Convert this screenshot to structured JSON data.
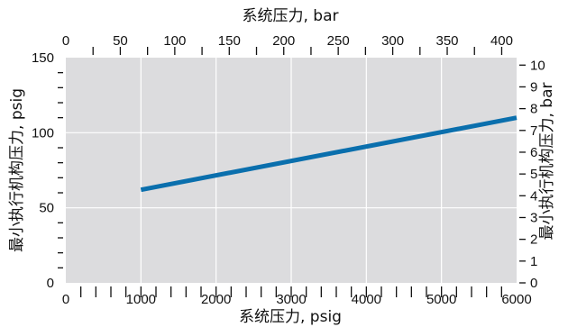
{
  "chart_data": {
    "type": "line",
    "xlabel_bottom": "系统压力, psig",
    "xlabel_top": "系统压力, bar",
    "ylabel_left": "最小执行机构压力, psig",
    "ylabel_right": "最小执行机构压力, bar",
    "xlim": [
      0,
      6000
    ],
    "ylim": [
      0,
      150
    ],
    "xticks_bottom": [
      "0",
      "1000",
      "2000",
      "3000",
      "4000",
      "5000",
      "6000"
    ],
    "xticks_top": [
      "0",
      "50",
      "100",
      "150",
      "200",
      "250",
      "300",
      "350",
      "400"
    ],
    "yticks_left": [
      "0",
      "50",
      "100",
      "150"
    ],
    "yticks_right": [
      "0",
      "1",
      "2",
      "3",
      "4",
      "5",
      "6",
      "7",
      "8",
      "9",
      "10"
    ],
    "grid": true,
    "x": [
      1000,
      6000
    ],
    "series": [
      {
        "values": [
          62,
          110
        ],
        "color": "#0a6fad"
      }
    ],
    "background_color": "#dcdcde"
  }
}
